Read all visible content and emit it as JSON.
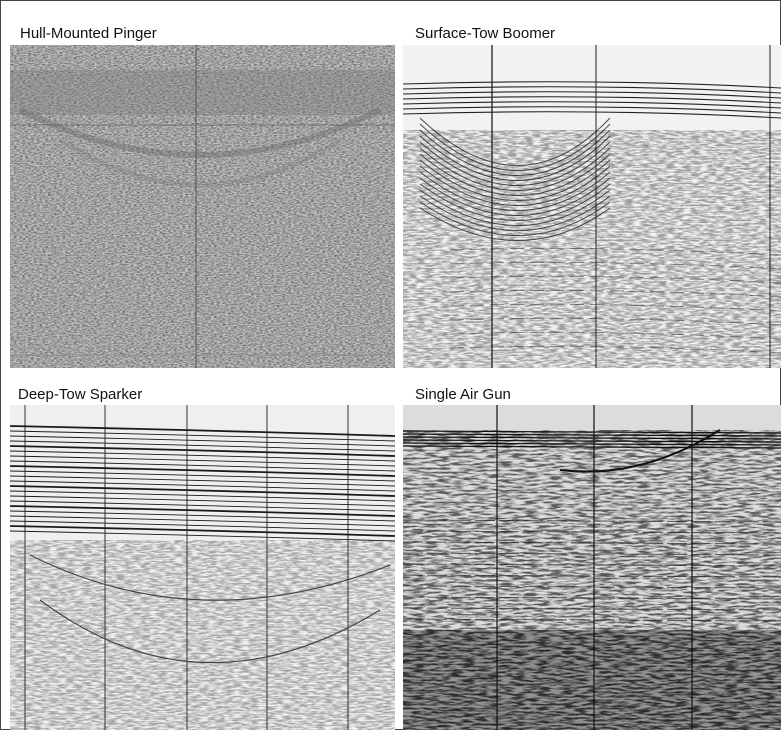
{
  "panels": [
    {
      "title": "Hull-Mounted Pinger"
    },
    {
      "title": "Surface-Tow Boomer"
    },
    {
      "title": "Deep-Tow Sparker"
    },
    {
      "title": "Single Air Gun"
    }
  ]
}
